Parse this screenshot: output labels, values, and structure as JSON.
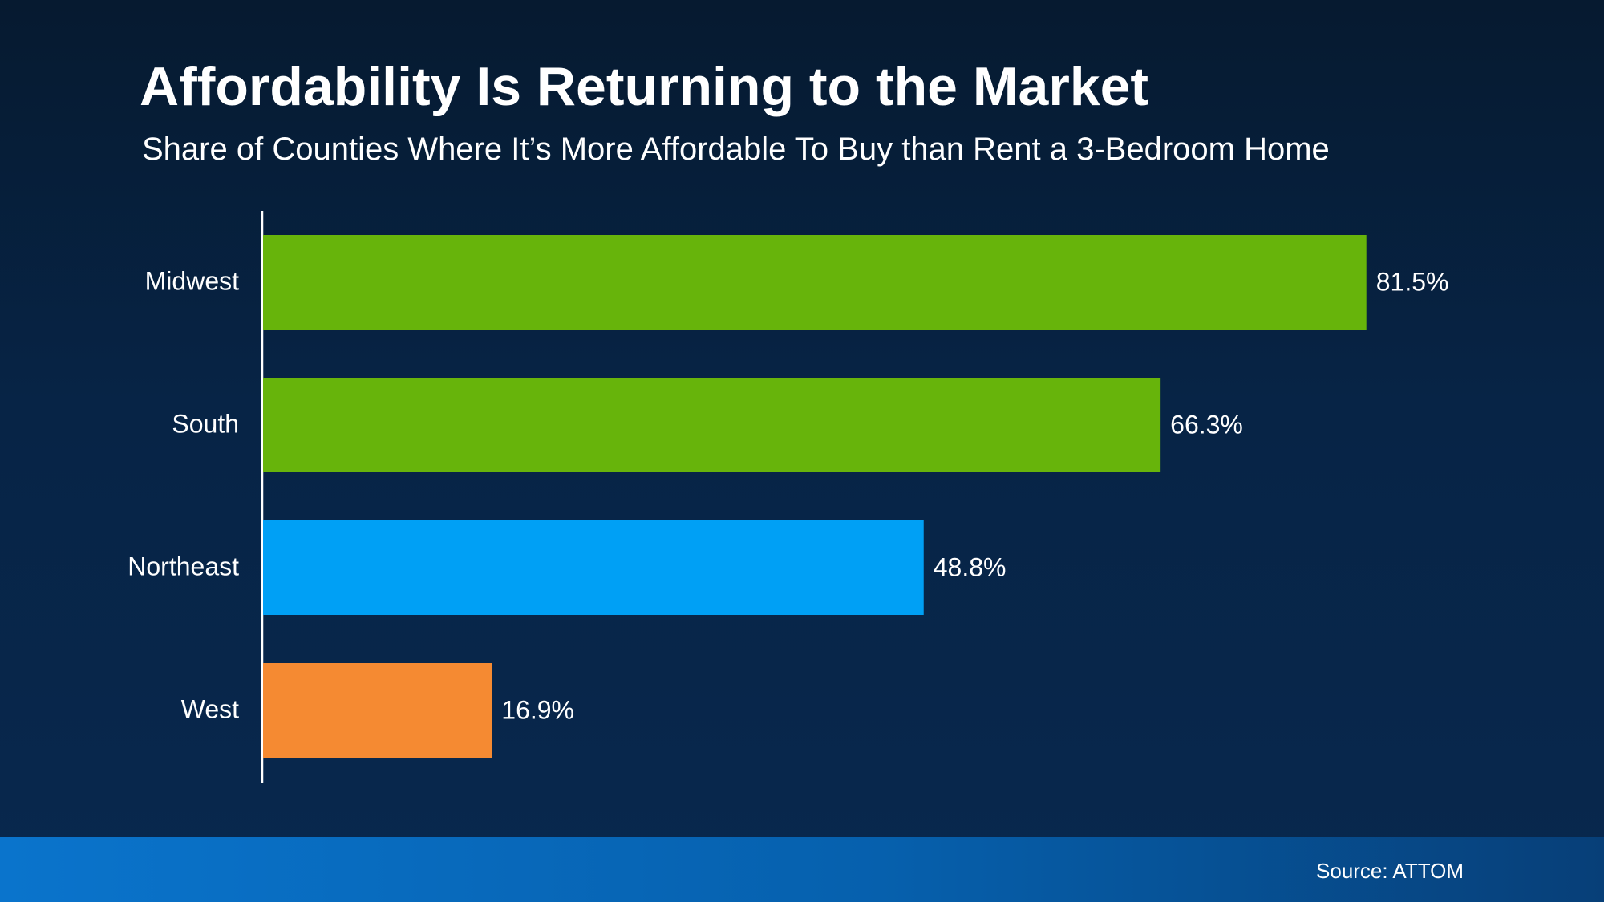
{
  "header": {
    "title": "Affordability Is Returning to the Market",
    "subtitle": "Share of Counties Where It’s More Affordable To Buy than Rent a 3-Bedroom Home"
  },
  "footer": {
    "source": "Source: ATTOM"
  },
  "colors": {
    "background": "#072446",
    "footer_band": "#0a74cc",
    "green": "#67b40b",
    "blue": "#00a0f5",
    "orange": "#f58a32"
  },
  "chart_data": {
    "type": "bar",
    "orientation": "horizontal",
    "title": "Affordability Is Returning to the Market",
    "subtitle": "Share of Counties Where It’s More Affordable To Buy than Rent a 3-Bedroom Home",
    "xlabel": "",
    "ylabel": "",
    "categories": [
      "Midwest",
      "South",
      "Northeast",
      "West"
    ],
    "values": [
      81.5,
      66.3,
      48.8,
      16.9
    ],
    "value_labels": [
      "81.5%",
      "66.3%",
      "48.8%",
      "16.9%"
    ],
    "bar_colors": [
      "#67b40b",
      "#67b40b",
      "#00a0f5",
      "#f58a32"
    ],
    "xlim": [
      0,
      100
    ],
    "grid": false,
    "legend": "none"
  }
}
